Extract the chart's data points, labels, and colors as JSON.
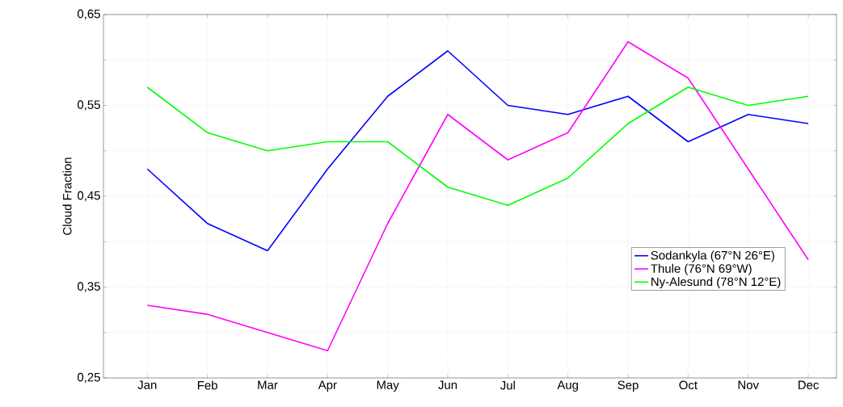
{
  "chart_data": {
    "type": "line",
    "ylabel": "Cloud Fraction",
    "categories": [
      "Jan",
      "Feb",
      "Mar",
      "Apr",
      "May",
      "Jun",
      "Jul",
      "Aug",
      "Sep",
      "Oct",
      "Nov",
      "Dec"
    ],
    "series": [
      {
        "name": "Sodankyla (67°N  26°E)",
        "color": "#0000ff",
        "values": [
          0.48,
          0.42,
          0.39,
          0.48,
          0.56,
          0.61,
          0.55,
          0.54,
          0.56,
          0.51,
          0.54,
          0.53
        ]
      },
      {
        "name": "Thule (76°N  69°W)",
        "color": "#ff00ff",
        "values": [
          0.33,
          0.32,
          0.3,
          0.28,
          0.42,
          0.54,
          0.49,
          0.52,
          0.62,
          0.58,
          0.48,
          0.38
        ]
      },
      {
        "name": "Ny-Alesund (78°N  12°E)",
        "color": "#00ff00",
        "values": [
          0.57,
          0.52,
          0.5,
          0.51,
          0.51,
          0.46,
          0.44,
          0.47,
          0.53,
          0.57,
          0.55,
          0.56
        ]
      }
    ],
    "ylim": [
      0.25,
      0.65
    ],
    "yticks": [
      {
        "value": 0.25,
        "label": "0,25"
      },
      {
        "value": 0.3,
        "label": null
      },
      {
        "value": 0.35,
        "label": "0,35"
      },
      {
        "value": 0.4,
        "label": null
      },
      {
        "value": 0.45,
        "label": "0,45"
      },
      {
        "value": 0.5,
        "label": null
      },
      {
        "value": 0.55,
        "label": "0,55"
      },
      {
        "value": 0.6,
        "label": null
      },
      {
        "value": 0.65,
        "label": "0,65"
      }
    ],
    "grid": true,
    "legend": "right",
    "marker": "none",
    "line_style": "solid"
  }
}
